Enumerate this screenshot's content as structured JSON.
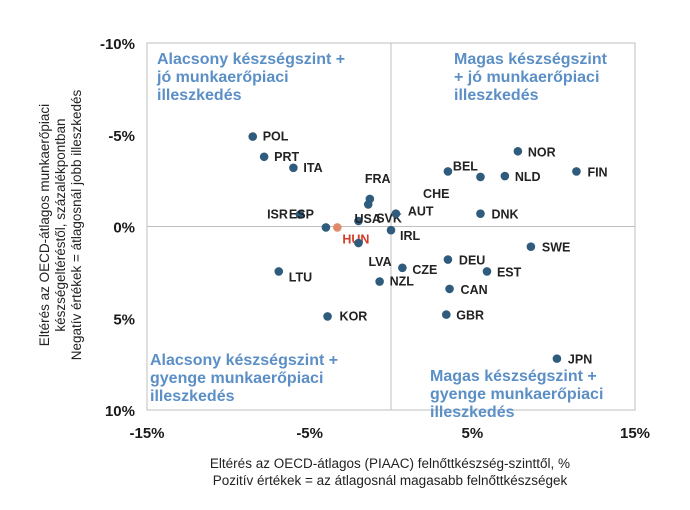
{
  "chart_data": {
    "type": "scatter",
    "title": "",
    "xlabel": [
      "Eltérés az OECD-átlagos (PIAAC) felnőttkészség-szinttől,  %",
      "Pozitív értékek = az átlagosnál magasabb felnőttkészségek"
    ],
    "ylabel": [
      "Eltérés az OECD-átlagos munkaerőpiaci",
      "készségeltéréstől, százalékpontban",
      "Negatív értékek = átlagosnál jobb illeszkedés"
    ],
    "xlim": [
      -15,
      15
    ],
    "ylim": [
      -10,
      10
    ],
    "y_inverted": true,
    "grid": false,
    "x_ticks": [
      "-15%",
      "-5%",
      "5%",
      "15%"
    ],
    "x_tick_values": [
      -15,
      -5,
      5,
      15
    ],
    "y_ticks": [
      "-10%",
      "-5%",
      "0%",
      "5%",
      "10%"
    ],
    "y_tick_values": [
      -10,
      -5,
      0,
      5,
      10
    ],
    "quadrant_labels": {
      "top_left": [
        "Alacsony készségszint +",
        "jó munkaerőpiaci",
        "illeszkedés"
      ],
      "top_right": [
        "Magas készségszint",
        "+ jó munkaerőpiaci",
        "illeszkedés"
      ],
      "bottom_left": [
        "Alacsony készségszint +",
        "gyenge munkaerőpiaci",
        "illeszkedés"
      ],
      "bottom_right": [
        "Magas készségszint +",
        "gyenge munkaerőpiaci",
        "illeszkedés"
      ]
    },
    "points": [
      {
        "label": "POL",
        "x": -8.5,
        "y": -4.9
      },
      {
        "label": "PRT",
        "x": -7.8,
        "y": -3.8
      },
      {
        "label": "ITA",
        "x": -6.0,
        "y": -3.2
      },
      {
        "label": "ISR",
        "x": -5.6,
        "y": -0.65
      },
      {
        "label": "ESP",
        "x": -4.0,
        "y": 0.05
      },
      {
        "label": "HUN",
        "x": -3.3,
        "y": 0.05,
        "highlight": true
      },
      {
        "label": "LTU",
        "x": -6.9,
        "y": 2.45
      },
      {
        "label": "KOR",
        "x": -3.9,
        "y": 4.9
      },
      {
        "label": "FRA",
        "x": -1.3,
        "y": -1.5
      },
      {
        "label": "SVK",
        "x": -1.4,
        "y": -1.2
      },
      {
        "label": "USA",
        "x": -2.0,
        "y": -0.3
      },
      {
        "label": "LVA",
        "x": -2.0,
        "y": 0.9
      },
      {
        "label": "AUT",
        "x": 0.3,
        "y": -0.7
      },
      {
        "label": "IRL",
        "x": 0.0,
        "y": 0.2
      },
      {
        "label": "NZL",
        "x": -0.7,
        "y": 3.0
      },
      {
        "label": "CZE",
        "x": 0.7,
        "y": 2.25
      },
      {
        "label": "BEL",
        "x": 3.5,
        "y": -3.0
      },
      {
        "label": "CHE",
        "x": 5.5,
        "y": -2.7
      },
      {
        "label": "NOR",
        "x": 7.8,
        "y": -4.1
      },
      {
        "label": "NLD",
        "x": 7.0,
        "y": -2.75
      },
      {
        "label": "FIN",
        "x": 11.4,
        "y": -3.0
      },
      {
        "label": "DNK",
        "x": 5.5,
        "y": -0.7
      },
      {
        "label": "SWE",
        "x": 8.6,
        "y": 1.1
      },
      {
        "label": "DEU",
        "x": 3.5,
        "y": 1.8
      },
      {
        "label": "EST",
        "x": 5.9,
        "y": 2.45
      },
      {
        "label": "CAN",
        "x": 3.6,
        "y": 3.4
      },
      {
        "label": "GBR",
        "x": 3.4,
        "y": 4.8
      },
      {
        "label": "JPN",
        "x": 10.2,
        "y": 7.2
      }
    ],
    "colors": {
      "point": "#2f5b7c",
      "highlight_point": "#e08a6b",
      "highlight_label": "#d63c2a",
      "quadrant_text": "#5b8fc6",
      "axis": "#bfbfbf"
    }
  }
}
